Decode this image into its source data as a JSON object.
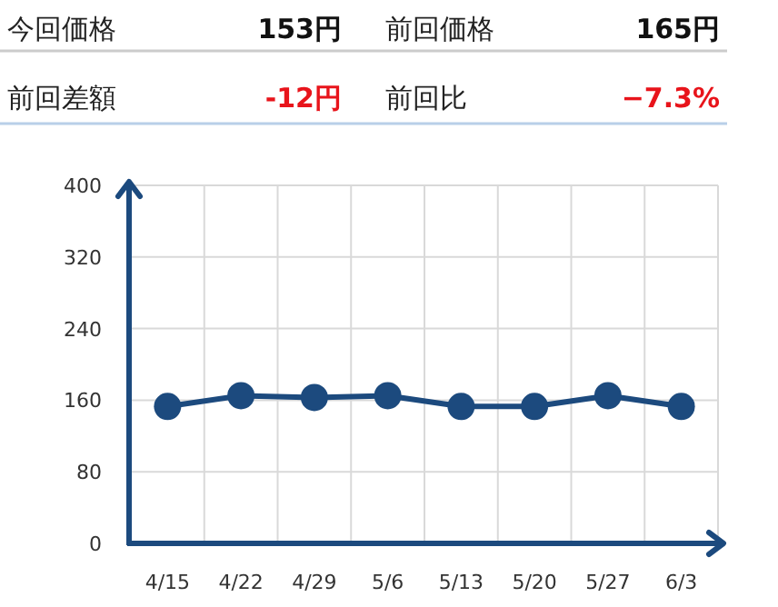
{
  "chart_data": [
    {
      "type": "other",
      "annotations": [
        "今回価格",
        "153円",
        "前回価格",
        "165円",
        "前回差額",
        "-12円",
        "前回比",
        "−7.3%"
      ],
      "colors": [
        "#222222",
        "#111111",
        "#222222",
        "#111111",
        "#222222",
        "#e8141b",
        "#222222",
        "#e8141b"
      ]
    },
    {
      "type": "line",
      "categories": [
        "4/15",
        "4/22",
        "4/29",
        "5/6",
        "5/13",
        "5/20",
        "5/27",
        "6/3"
      ],
      "series": [
        {
          "color": "#1c4a7e",
          "values": [
            153,
            165,
            163,
            165,
            153,
            153,
            165,
            153
          ]
        }
      ],
      "ylim": [
        0,
        400
      ],
      "yticks": [
        0,
        80,
        160,
        240,
        320,
        400
      ],
      "grid": true,
      "marker": "circle",
      "line_style": "solid"
    }
  ]
}
